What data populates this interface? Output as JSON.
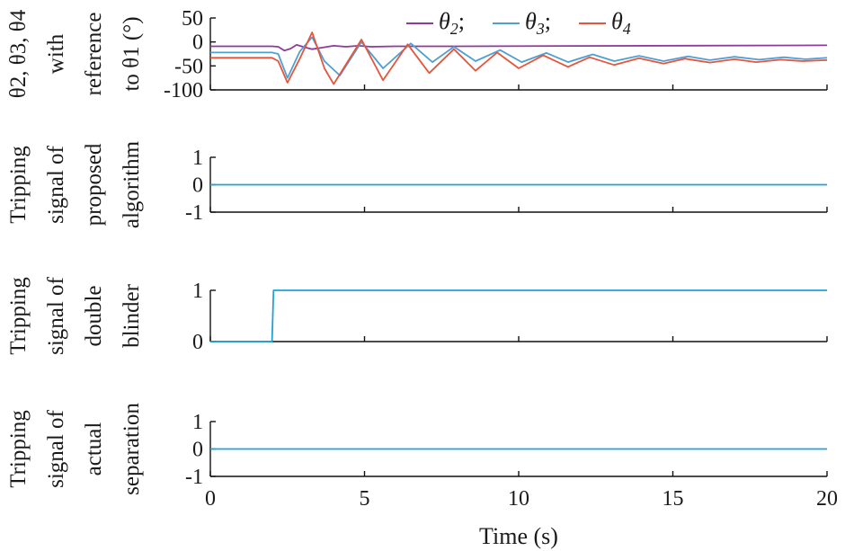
{
  "chart_data": [
    {
      "type": "line",
      "ylabel_lines": [
        "θ2, θ3, θ4",
        "with",
        "reference",
        "to θ1 (°)"
      ],
      "xlim": [
        0,
        20
      ],
      "ylim": [
        -100,
        50
      ],
      "yticks": [
        "50",
        "0",
        "-50",
        "-100"
      ],
      "ytick_values": [
        50,
        0,
        -50,
        -100
      ],
      "legend": {
        "placement": "top-center",
        "entries": [
          {
            "sym": "θ",
            "sub": "2",
            "sep": ";"
          },
          {
            "sym": "θ",
            "sub": "3",
            "sep": ";"
          },
          {
            "sym": "θ",
            "sub": "4",
            "sep": ""
          }
        ]
      },
      "series": [
        {
          "name": "θ2",
          "color": "#8e3a9b",
          "points": [
            [
              0,
              -9
            ],
            [
              1,
              -9
            ],
            [
              2,
              -9
            ],
            [
              2.2,
              -10
            ],
            [
              2.4,
              -18
            ],
            [
              2.6,
              -14
            ],
            [
              2.8,
              -6
            ],
            [
              3.0,
              -10
            ],
            [
              3.3,
              -15
            ],
            [
              3.6,
              -12
            ],
            [
              4.0,
              -8
            ],
            [
              4.4,
              -10
            ],
            [
              4.8,
              -8
            ],
            [
              5.2,
              -10
            ],
            [
              6,
              -9
            ],
            [
              8,
              -9
            ],
            [
              20,
              -7
            ]
          ]
        },
        {
          "name": "θ3",
          "color": "#4f9fd4",
          "points": [
            [
              0,
              -22
            ],
            [
              1,
              -22
            ],
            [
              2,
              -22
            ],
            [
              2.2,
              -25
            ],
            [
              2.5,
              -75
            ],
            [
              2.9,
              -20
            ],
            [
              3.3,
              10
            ],
            [
              3.7,
              -40
            ],
            [
              4.2,
              -70
            ],
            [
              4.9,
              0
            ],
            [
              5.6,
              -55
            ],
            [
              6.5,
              -3
            ],
            [
              7.2,
              -42
            ],
            [
              7.9,
              -10
            ],
            [
              8.6,
              -40
            ],
            [
              9.4,
              -17
            ],
            [
              10.1,
              -42
            ],
            [
              10.9,
              -23
            ],
            [
              11.6,
              -42
            ],
            [
              12.4,
              -26
            ],
            [
              13.1,
              -40
            ],
            [
              13.9,
              -29
            ],
            [
              14.7,
              -40
            ],
            [
              15.5,
              -30
            ],
            [
              16.2,
              -38
            ],
            [
              17.0,
              -31
            ],
            [
              17.8,
              -37
            ],
            [
              18.6,
              -32
            ],
            [
              19.3,
              -36
            ],
            [
              20,
              -33
            ]
          ]
        },
        {
          "name": "θ4",
          "color": "#e5553b",
          "points": [
            [
              0,
              -33
            ],
            [
              1,
              -33
            ],
            [
              2,
              -33
            ],
            [
              2.2,
              -40
            ],
            [
              2.5,
              -85
            ],
            [
              2.9,
              -35
            ],
            [
              3.3,
              20
            ],
            [
              3.7,
              -55
            ],
            [
              4.0,
              -88
            ],
            [
              4.9,
              5
            ],
            [
              5.6,
              -80
            ],
            [
              6.4,
              -5
            ],
            [
              7.1,
              -65
            ],
            [
              7.9,
              -15
            ],
            [
              8.6,
              -60
            ],
            [
              9.3,
              -22
            ],
            [
              10.0,
              -55
            ],
            [
              10.8,
              -28
            ],
            [
              11.6,
              -52
            ],
            [
              12.3,
              -32
            ],
            [
              13.1,
              -48
            ],
            [
              13.9,
              -34
            ],
            [
              14.7,
              -45
            ],
            [
              15.4,
              -35
            ],
            [
              16.2,
              -43
            ],
            [
              17.0,
              -36
            ],
            [
              17.7,
              -42
            ],
            [
              18.5,
              -37
            ],
            [
              19.2,
              -40
            ],
            [
              20,
              -38
            ]
          ]
        }
      ]
    },
    {
      "type": "line",
      "ylabel_lines": [
        "Tripping",
        "signal of",
        "proposed",
        "algorithm"
      ],
      "xlim": [
        0,
        20
      ],
      "ylim": [
        -1,
        1
      ],
      "yticks": [
        "1",
        "0",
        "-1"
      ],
      "ytick_values": [
        1,
        0,
        -1
      ],
      "series": [
        {
          "color": "#1fa3d6",
          "points": [
            [
              0,
              0
            ],
            [
              20,
              0
            ]
          ]
        }
      ]
    },
    {
      "type": "line",
      "ylabel_lines": [
        "Tripping",
        "signal of",
        "double",
        "blinder"
      ],
      "xlim": [
        0,
        20
      ],
      "ylim": [
        0,
        1
      ],
      "yticks": [
        "1",
        "0"
      ],
      "ytick_values": [
        1,
        0
      ],
      "series": [
        {
          "color": "#1fa3d6",
          "points": [
            [
              0,
              0
            ],
            [
              2.0,
              0
            ],
            [
              2.05,
              1
            ],
            [
              20,
              1
            ]
          ]
        }
      ]
    },
    {
      "type": "line",
      "ylabel_lines": [
        "Tripping",
        "signal of",
        "actual",
        "separation"
      ],
      "xlim": [
        0,
        20
      ],
      "ylim": [
        -1,
        1
      ],
      "yticks": [
        "1",
        "0",
        "-1"
      ],
      "ytick_values": [
        1,
        0,
        -1
      ],
      "xticks": [
        "0",
        "5",
        "10",
        "15",
        "20"
      ],
      "xtick_values": [
        0,
        5,
        10,
        15,
        20
      ],
      "xlabel": "Time (s)",
      "series": [
        {
          "color": "#1fa3d6",
          "points": [
            [
              0,
              0
            ],
            [
              20,
              0
            ]
          ]
        }
      ]
    }
  ]
}
